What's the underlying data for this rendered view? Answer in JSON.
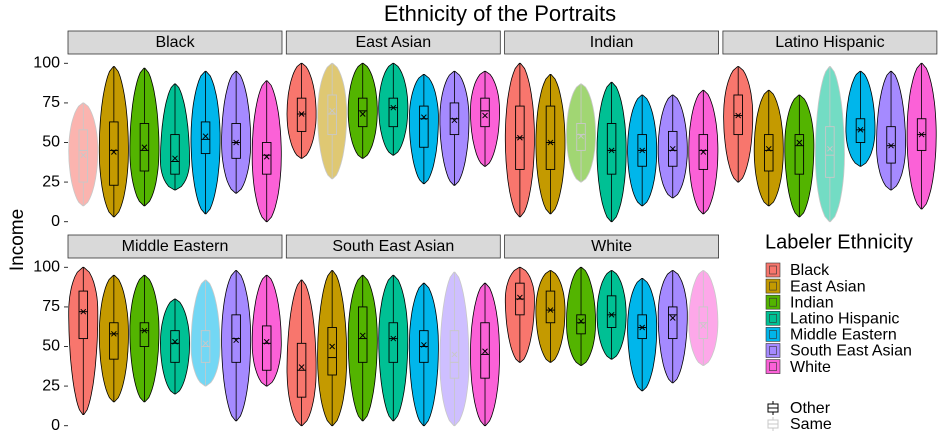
{
  "chart_data": {
    "type": "violin",
    "title": "Ethnicity of the Portraits",
    "y_label": "Income",
    "ylim": [
      -4,
      104
    ],
    "yticks": [
      0,
      25,
      50,
      75,
      100
    ],
    "legend_title": "Labeler Ethnicity",
    "series": [
      {
        "name": "Black",
        "color": "#F8766D"
      },
      {
        "name": "East Asian",
        "color": "#C49A00"
      },
      {
        "name": "Indian",
        "color": "#53B400"
      },
      {
        "name": "Latino Hispanic",
        "color": "#00C094"
      },
      {
        "name": "Middle Eastern",
        "color": "#00B6EB"
      },
      {
        "name": "South East Asian",
        "color": "#A58AFF"
      },
      {
        "name": "White",
        "color": "#FB61D7"
      }
    ],
    "groups": [
      "Other",
      "Same"
    ],
    "facets": [
      {
        "name": "Black",
        "violins": [
          {
            "min": 10,
            "q1": 25,
            "median": 45,
            "q3": 58,
            "max": 75,
            "mean": 42
          },
          {
            "min": 3,
            "q1": 23,
            "median": 45,
            "q3": 63,
            "max": 98,
            "mean": 44
          },
          {
            "min": 10,
            "q1": 32,
            "median": 45,
            "q3": 62,
            "max": 97,
            "mean": 47
          },
          {
            "min": 20,
            "q1": 30,
            "median": 38,
            "q3": 55,
            "max": 87,
            "mean": 40
          },
          {
            "min": 5,
            "q1": 43,
            "median": 52,
            "q3": 63,
            "max": 95,
            "mean": 54
          },
          {
            "min": 18,
            "q1": 40,
            "median": 50,
            "q3": 62,
            "max": 95,
            "mean": 50
          },
          {
            "min": 0,
            "q1": 30,
            "median": 42,
            "q3": 50,
            "max": 89,
            "mean": 41
          }
        ]
      },
      {
        "name": "East Asian",
        "violins": [
          {
            "min": 40,
            "q1": 57,
            "median": 68,
            "q3": 78,
            "max": 100,
            "mean": 68
          },
          {
            "min": 27,
            "q1": 55,
            "median": 68,
            "q3": 80,
            "max": 100,
            "mean": 70
          },
          {
            "min": 40,
            "q1": 60,
            "median": 70,
            "q3": 78,
            "max": 100,
            "mean": 68
          },
          {
            "min": 42,
            "q1": 60,
            "median": 72,
            "q3": 78,
            "max": 100,
            "mean": 72
          },
          {
            "min": 24,
            "q1": 47,
            "median": 65,
            "q3": 73,
            "max": 93,
            "mean": 66
          },
          {
            "min": 23,
            "q1": 55,
            "median": 65,
            "q3": 75,
            "max": 95,
            "mean": 64
          },
          {
            "min": 35,
            "q1": 60,
            "median": 70,
            "q3": 78,
            "max": 95,
            "mean": 67
          }
        ]
      },
      {
        "name": "Indian",
        "violins": [
          {
            "min": 3,
            "q1": 33,
            "median": 53,
            "q3": 73,
            "max": 100,
            "mean": 53
          },
          {
            "min": 5,
            "q1": 33,
            "median": 50,
            "q3": 73,
            "max": 93,
            "mean": 50
          },
          {
            "min": 25,
            "q1": 45,
            "median": 55,
            "q3": 62,
            "max": 87,
            "mean": 54
          },
          {
            "min": 0,
            "q1": 30,
            "median": 45,
            "q3": 62,
            "max": 88,
            "mean": 45
          },
          {
            "min": 10,
            "q1": 35,
            "median": 45,
            "q3": 55,
            "max": 80,
            "mean": 45
          },
          {
            "min": 15,
            "q1": 35,
            "median": 45,
            "q3": 57,
            "max": 80,
            "mean": 46
          },
          {
            "min": 5,
            "q1": 33,
            "median": 45,
            "q3": 55,
            "max": 83,
            "mean": 44
          }
        ]
      },
      {
        "name": "Latino Hispanic",
        "violins": [
          {
            "min": 25,
            "q1": 55,
            "median": 67,
            "q3": 80,
            "max": 98,
            "mean": 67
          },
          {
            "min": 10,
            "q1": 32,
            "median": 45,
            "q3": 55,
            "max": 83,
            "mean": 46
          },
          {
            "min": 3,
            "q1": 30,
            "median": 48,
            "q3": 55,
            "max": 80,
            "mean": 50
          },
          {
            "min": 0,
            "q1": 28,
            "median": 42,
            "q3": 60,
            "max": 98,
            "mean": 46
          },
          {
            "min": 35,
            "q1": 50,
            "median": 58,
            "q3": 65,
            "max": 95,
            "mean": 58
          },
          {
            "min": 20,
            "q1": 37,
            "median": 48,
            "q3": 60,
            "max": 95,
            "mean": 48
          },
          {
            "min": 8,
            "q1": 45,
            "median": 55,
            "q3": 65,
            "max": 100,
            "mean": 55
          }
        ]
      },
      {
        "name": "Middle Eastern",
        "violins": [
          {
            "min": 7,
            "q1": 55,
            "median": 72,
            "q3": 85,
            "max": 100,
            "mean": 72
          },
          {
            "min": 15,
            "q1": 42,
            "median": 58,
            "q3": 65,
            "max": 95,
            "mean": 58
          },
          {
            "min": 15,
            "q1": 50,
            "median": 60,
            "q3": 65,
            "max": 95,
            "mean": 60
          },
          {
            "min": 20,
            "q1": 40,
            "median": 52,
            "q3": 60,
            "max": 80,
            "mean": 53
          },
          {
            "min": 25,
            "q1": 40,
            "median": 50,
            "q3": 60,
            "max": 92,
            "mean": 52
          },
          {
            "min": 3,
            "q1": 40,
            "median": 55,
            "q3": 70,
            "max": 98,
            "mean": 54
          },
          {
            "min": 25,
            "q1": 35,
            "median": 52,
            "q3": 63,
            "max": 95,
            "mean": 53
          }
        ]
      },
      {
        "name": "South East Asian",
        "violins": [
          {
            "min": 0,
            "q1": 18,
            "median": 35,
            "q3": 52,
            "max": 92,
            "mean": 37
          },
          {
            "min": 0,
            "q1": 32,
            "median": 43,
            "q3": 62,
            "max": 98,
            "mean": 50
          },
          {
            "min": 3,
            "q1": 40,
            "median": 55,
            "q3": 75,
            "max": 95,
            "mean": 57
          },
          {
            "min": 3,
            "q1": 40,
            "median": 55,
            "q3": 65,
            "max": 95,
            "mean": 55
          },
          {
            "min": 0,
            "q1": 40,
            "median": 50,
            "q3": 60,
            "max": 90,
            "mean": 51
          },
          {
            "min": 0,
            "q1": 30,
            "median": 40,
            "q3": 60,
            "max": 97,
            "mean": 45
          },
          {
            "min": 0,
            "q1": 30,
            "median": 45,
            "q3": 65,
            "max": 90,
            "mean": 47
          }
        ]
      },
      {
        "name": "White",
        "violins": [
          {
            "min": 40,
            "q1": 70,
            "median": 80,
            "q3": 90,
            "max": 100,
            "mean": 81
          },
          {
            "min": 40,
            "q1": 65,
            "median": 73,
            "q3": 85,
            "max": 98,
            "mean": 73
          },
          {
            "min": 38,
            "q1": 58,
            "median": 65,
            "q3": 70,
            "max": 100,
            "mean": 66
          },
          {
            "min": 42,
            "q1": 62,
            "median": 70,
            "q3": 82,
            "max": 98,
            "mean": 70
          },
          {
            "min": 22,
            "q1": 55,
            "median": 62,
            "q3": 70,
            "max": 93,
            "mean": 62
          },
          {
            "min": 27,
            "q1": 55,
            "median": 70,
            "q3": 75,
            "max": 98,
            "mean": 68
          },
          {
            "min": 38,
            "q1": 55,
            "median": 65,
            "q3": 75,
            "max": 98,
            "mean": 63
          }
        ]
      }
    ]
  }
}
